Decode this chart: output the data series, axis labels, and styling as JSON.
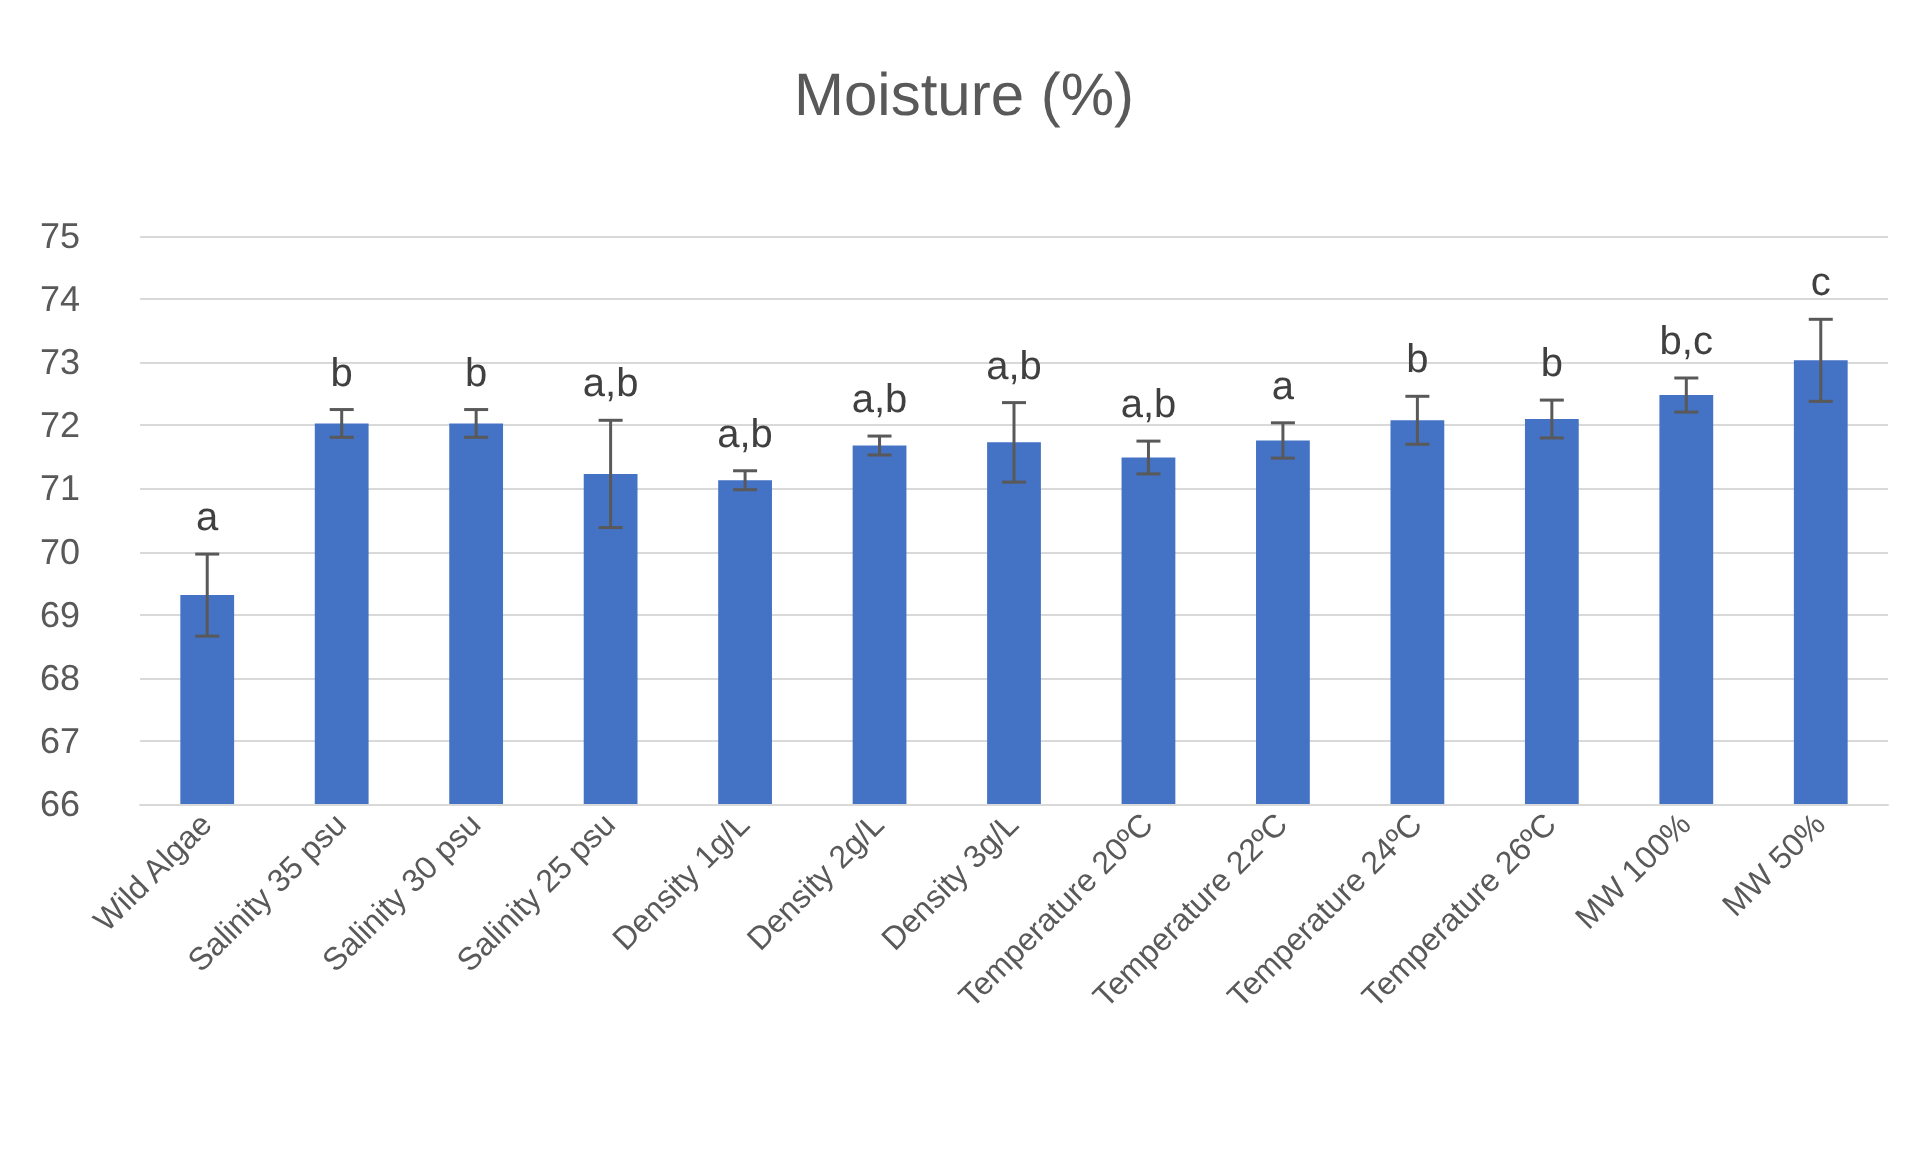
{
  "chart_data": {
    "type": "bar",
    "title": "Moisture (%)",
    "categories": [
      "Wild Algae",
      "Salinity 35 psu",
      "Salinity 30 psu",
      "Salinity 25 psu",
      "Density 1g/L",
      "Density 2g/L",
      "Density 3g/L",
      "Temperature 20ºC",
      "Temperature 22ºC",
      "Temperature 24ºC",
      "Temperature 26ºC",
      "MW 100%",
      "MW 50%"
    ],
    "values": [
      69.31,
      72.03,
      72.03,
      71.23,
      71.13,
      71.68,
      71.73,
      71.49,
      71.76,
      72.08,
      72.1,
      72.48,
      73.03
    ],
    "errors": [
      0.65,
      0.22,
      0.22,
      0.85,
      0.15,
      0.15,
      0.63,
      0.26,
      0.28,
      0.38,
      0.3,
      0.27,
      0.65
    ],
    "value_labels": [
      "a",
      "b",
      "b",
      "a,b",
      "a,b",
      "a,b",
      "a,b",
      "a,b",
      "a",
      "b",
      "b",
      "b,c",
      "c"
    ],
    "color": "#4472c4",
    "ylim": [
      66,
      75
    ],
    "yticks": [
      66,
      67,
      68,
      69,
      70,
      71,
      72,
      73,
      74,
      75
    ],
    "grid": "y"
  }
}
